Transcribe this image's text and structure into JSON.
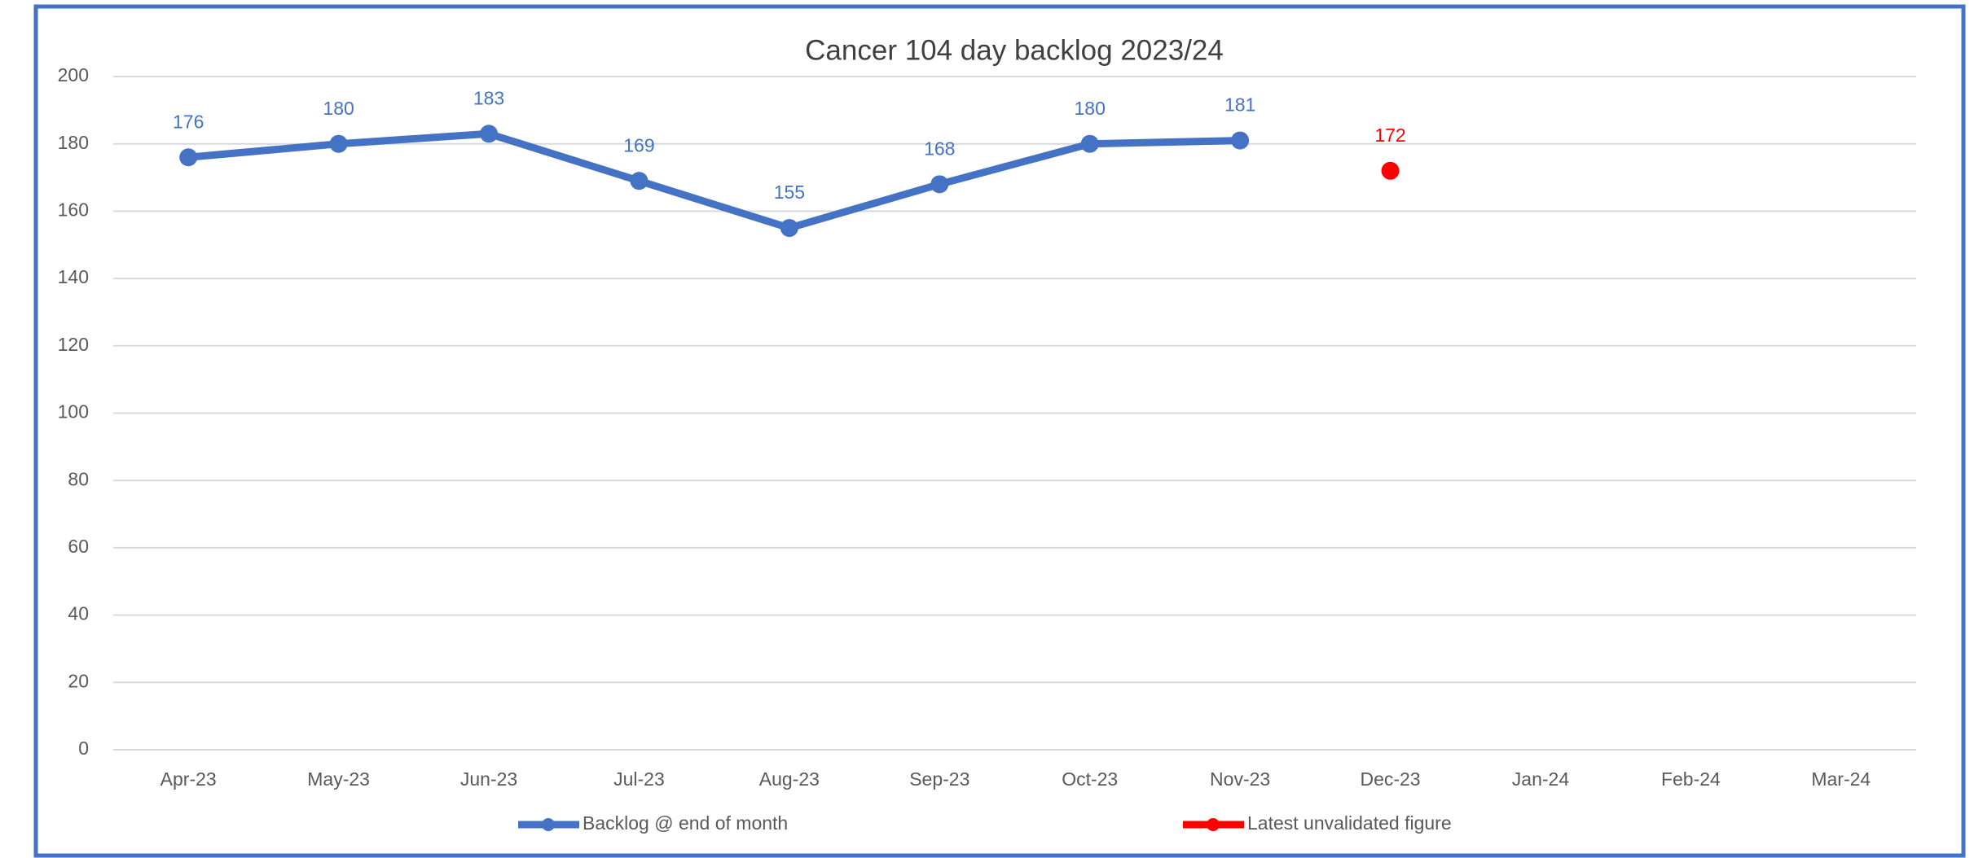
{
  "chart_data": {
    "type": "line",
    "title": "Cancer 104 day backlog 2023/24",
    "categories": [
      "Apr-23",
      "May-23",
      "Jun-23",
      "Jul-23",
      "Aug-23",
      "Sep-23",
      "Oct-23",
      "Nov-23",
      "Dec-23",
      "Jan-24",
      "Feb-24",
      "Mar-24"
    ],
    "series": [
      {
        "name": "Backlog @ end of month",
        "color": "#4472c4",
        "values": [
          176,
          180,
          183,
          169,
          155,
          168,
          180,
          181,
          null,
          null,
          null,
          null
        ]
      },
      {
        "name": "Latest unvalidated figure",
        "color": "#ff0000",
        "values": [
          null,
          null,
          null,
          null,
          null,
          null,
          null,
          null,
          172,
          null,
          null,
          null
        ]
      }
    ],
    "ylim": [
      0,
      200
    ],
    "yticks": [
      0,
      20,
      40,
      60,
      80,
      100,
      120,
      140,
      160,
      180,
      200
    ],
    "grid": true,
    "legend": "bottom",
    "data_labels": true
  }
}
